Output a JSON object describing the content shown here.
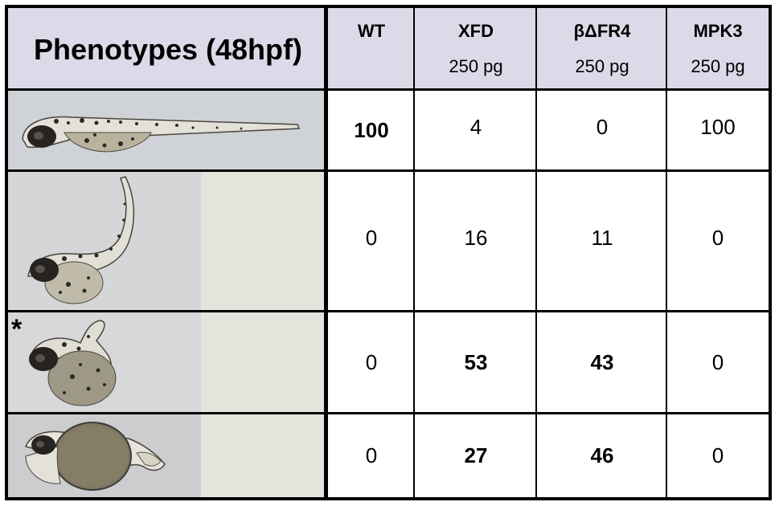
{
  "title": "Phenotypes (48hpf)",
  "columns": [
    {
      "name": "WT",
      "dose": ""
    },
    {
      "name": "XFD",
      "dose": "250 pg"
    },
    {
      "name": "βΔFR4",
      "dose": "250 pg"
    },
    {
      "name": "MPK3",
      "dose": "250 pg"
    }
  ],
  "rows": [
    {
      "values": [
        "100",
        "4",
        "0",
        "100"
      ],
      "bold": [
        true,
        false,
        false,
        false
      ]
    },
    {
      "values": [
        "0",
        "16",
        "11",
        "0"
      ],
      "bold": [
        false,
        false,
        false,
        false
      ]
    },
    {
      "values": [
        "0",
        "53",
        "43",
        "0"
      ],
      "bold": [
        false,
        true,
        true,
        false
      ],
      "marker": "*"
    },
    {
      "values": [
        "0",
        "27",
        "46",
        "0"
      ],
      "bold": [
        false,
        true,
        true,
        false
      ]
    }
  ],
  "photos": [
    {
      "phenotype": "normal",
      "background": "#cfd2d6"
    },
    {
      "phenotype": "curved-tail",
      "background": "#d4d6d8"
    },
    {
      "phenotype": "severe-curled",
      "background": "#d6d8da"
    },
    {
      "phenotype": "edema-shortened",
      "background": "#cbcdcf"
    }
  ]
}
